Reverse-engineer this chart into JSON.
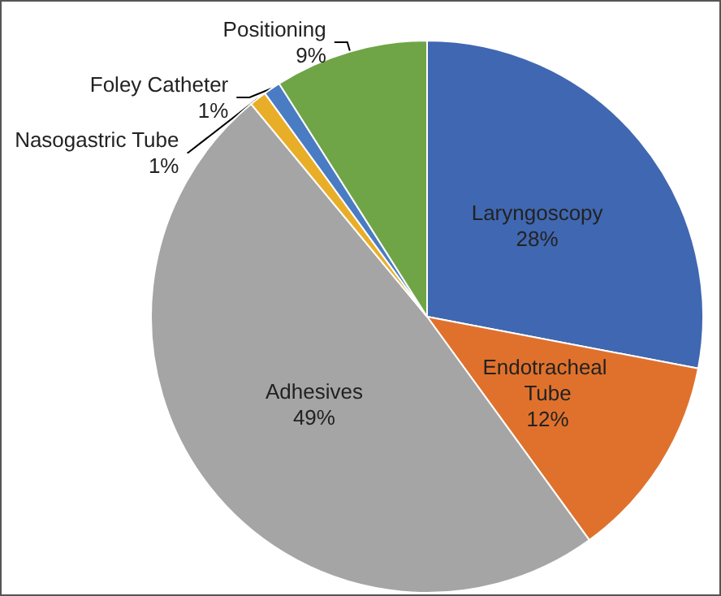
{
  "chart_data": {
    "type": "pie",
    "categories": [
      "Laryngoscopy",
      "Endotracheal Tube",
      "Adhesives",
      "Nasogastric Tube",
      "Foley Catheter",
      "Positioning"
    ],
    "values": [
      28,
      12,
      49,
      1,
      1,
      9
    ],
    "colors": [
      "#4067b1",
      "#e0712c",
      "#a5a5a5",
      "#e9ae28",
      "#4a7cc4",
      "#6fa546"
    ],
    "value_labels": [
      "28%",
      "12%",
      "49%",
      "1%",
      "1%",
      "9%"
    ]
  }
}
